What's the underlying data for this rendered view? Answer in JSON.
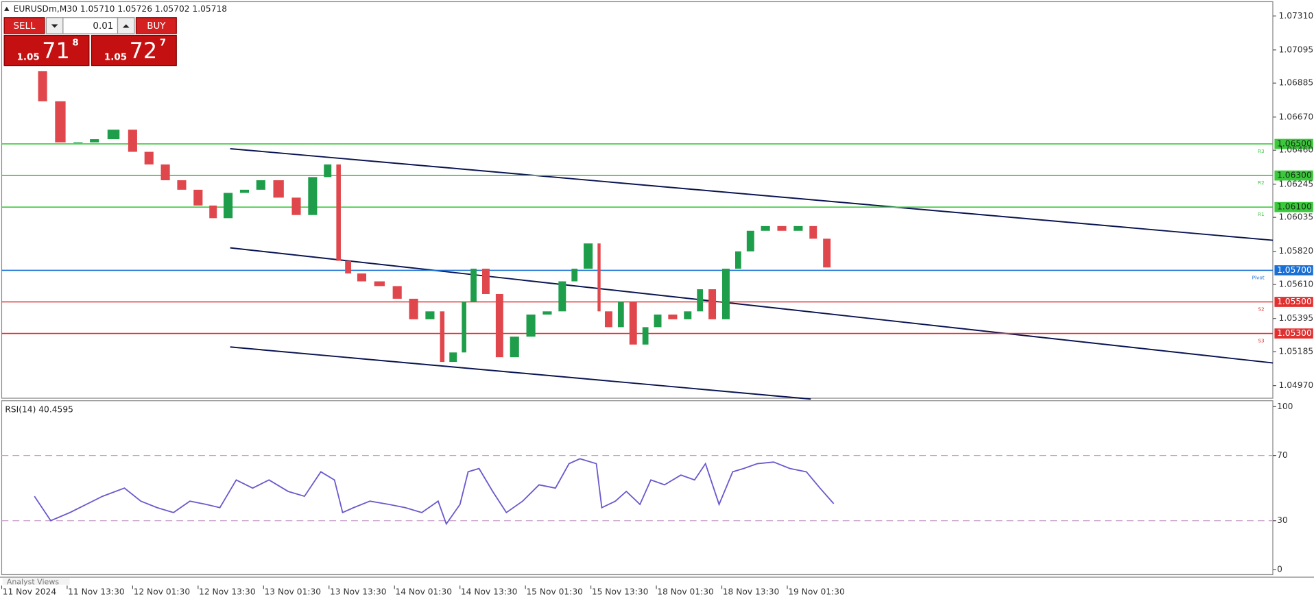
{
  "header": {
    "symbol_line": "EURUSDm,M30  1.05710 1.05726 1.05702 1.05718"
  },
  "trade_panel": {
    "sell": "SELL",
    "lot": "0.01",
    "buy": "BUY",
    "bid": {
      "big": "1.05",
      "main": "71",
      "small": "8"
    },
    "ask": {
      "big": "1.05",
      "main": "72",
      "small": "7"
    }
  },
  "chart_data": [
    {
      "type": "candlestick",
      "x": [
        12,
        18,
        25,
        31,
        37,
        45,
        51,
        57,
        63,
        69,
        75,
        80,
        86,
        92,
        98,
        105,
        111,
        117,
        122,
        125,
        129,
        135,
        142,
        148,
        154,
        160,
        163,
        168,
        171,
        175,
        180,
        185,
        191,
        197,
        203,
        208,
        212,
        218,
        220,
        225,
        229,
        234,
        238,
        243,
        249,
        254,
        258,
        263,
        268,
        272,
        277,
        283,
        289,
        295,
        300,
        305
      ],
      "close": [
        1.0696,
        1.0677,
        1.0651,
        1.0651,
        1.0653,
        1.0659,
        1.0645,
        1.0637,
        1.0627,
        1.0621,
        1.0611,
        1.0603,
        1.0619,
        1.0621,
        1.0627,
        1.0616,
        1.0605,
        1.0629,
        1.0637,
        1.0576,
        1.0568,
        1.0563,
        1.056,
        1.0552,
        1.0539,
        1.0544,
        1.0512,
        1.0518,
        1.055,
        1.0571,
        1.0555,
        1.0515,
        1.0528,
        1.0542,
        1.0544,
        1.0563,
        1.0571,
        1.0587,
        1.0544,
        1.0534,
        1.055,
        1.0523,
        1.0534,
        1.0542,
        1.0539,
        1.0544,
        1.0558,
        1.0539,
        1.0571,
        1.0582,
        1.0595,
        1.0598,
        1.0595,
        1.0598,
        1.059,
        1.05718
      ],
      "up_color": "#1e9e4a",
      "down_color": "#e0474c",
      "xlim": [
        0,
        466
      ],
      "xticks": [
        {
          "value": 0,
          "label": "11 Nov 2024"
        },
        {
          "value": 24,
          "label": "11 Nov 13:30"
        },
        {
          "value": 48,
          "label": "12 Nov 01:30"
        },
        {
          "value": 72,
          "label": "12 Nov 13:30"
        },
        {
          "value": 96,
          "label": "13 Nov 01:30"
        },
        {
          "value": 120,
          "label": "13 Nov 13:30"
        },
        {
          "value": 144,
          "label": "14 Nov 01:30"
        },
        {
          "value": 168,
          "label": "14 Nov 13:30"
        },
        {
          "value": 192,
          "label": "15 Nov 01:30"
        },
        {
          "value": 216,
          "label": "15 Nov 13:30"
        },
        {
          "value": 240,
          "label": "18 Nov 01:30"
        },
        {
          "value": 264,
          "label": "18 Nov 13:30"
        },
        {
          "value": 288,
          "label": "19 Nov 01:30"
        }
      ],
      "ylim": [
        1.04885,
        1.07395
      ],
      "yticks": [
        {
          "value": 1.0731,
          "label": "1.07310"
        },
        {
          "value": 1.07095,
          "label": "1.07095"
        },
        {
          "value": 1.06885,
          "label": "1.06885"
        },
        {
          "value": 1.0667,
          "label": "1.06670"
        },
        {
          "value": 1.0646,
          "label": "1.06460"
        },
        {
          "value": 1.06245,
          "label": "1.06245"
        },
        {
          "value": 1.06035,
          "label": "1.06035"
        },
        {
          "value": 1.0582,
          "label": "1.05820"
        },
        {
          "value": 1.0561,
          "label": "1.05610"
        },
        {
          "value": 1.05395,
          "label": "1.05395"
        },
        {
          "value": 1.05185,
          "label": "1.05185"
        },
        {
          "value": 1.0497,
          "label": "1.04970"
        }
      ],
      "levels": [
        {
          "value": 1.065,
          "label": "1.06500",
          "tag": "R3",
          "color": "#3cc83c"
        },
        {
          "value": 1.063,
          "label": "1.06300",
          "tag": "R2",
          "color": "#3cc83c"
        },
        {
          "value": 1.061,
          "label": "1.06100",
          "tag": "R1",
          "color": "#3cc83c"
        },
        {
          "value": 1.057,
          "label": "1.05700",
          "tag": "Pivot",
          "color": "#1a6fd4"
        },
        {
          "value": 1.055,
          "label": "1.05500",
          "tag": "S2",
          "color": "#e03030"
        },
        {
          "value": 1.053,
          "label": "1.05300",
          "tag": "S3",
          "color": "#e03030"
        }
      ]
    },
    {
      "type": "line",
      "title": "RSI(14) 40.4595",
      "x": [
        12,
        18,
        25,
        31,
        37,
        45,
        51,
        57,
        63,
        69,
        75,
        80,
        86,
        92,
        98,
        105,
        111,
        117,
        122,
        125,
        129,
        135,
        142,
        148,
        154,
        160,
        163,
        168,
        171,
        175,
        180,
        185,
        191,
        197,
        203,
        208,
        212,
        218,
        220,
        225,
        229,
        234,
        238,
        243,
        249,
        254,
        258,
        263,
        268,
        272,
        277,
        283,
        289,
        295,
        300,
        305
      ],
      "values": [
        45,
        30,
        35,
        40,
        45,
        50,
        42,
        38,
        35,
        42,
        40,
        38,
        55,
        50,
        55,
        48,
        45,
        60,
        55,
        35,
        38,
        42,
        40,
        38,
        35,
        42,
        28,
        40,
        60,
        62,
        48,
        35,
        42,
        52,
        50,
        65,
        68,
        65,
        38,
        42,
        48,
        40,
        55,
        52,
        58,
        55,
        65,
        40,
        60,
        62,
        65,
        66,
        62,
        60,
        50,
        40.4595
      ],
      "color": "#6a5acd",
      "ylim": [
        0,
        100
      ],
      "yticks": [
        0,
        30,
        70,
        100
      ],
      "levels": [
        30,
        70
      ]
    }
  ],
  "footer": "Analyst Views"
}
